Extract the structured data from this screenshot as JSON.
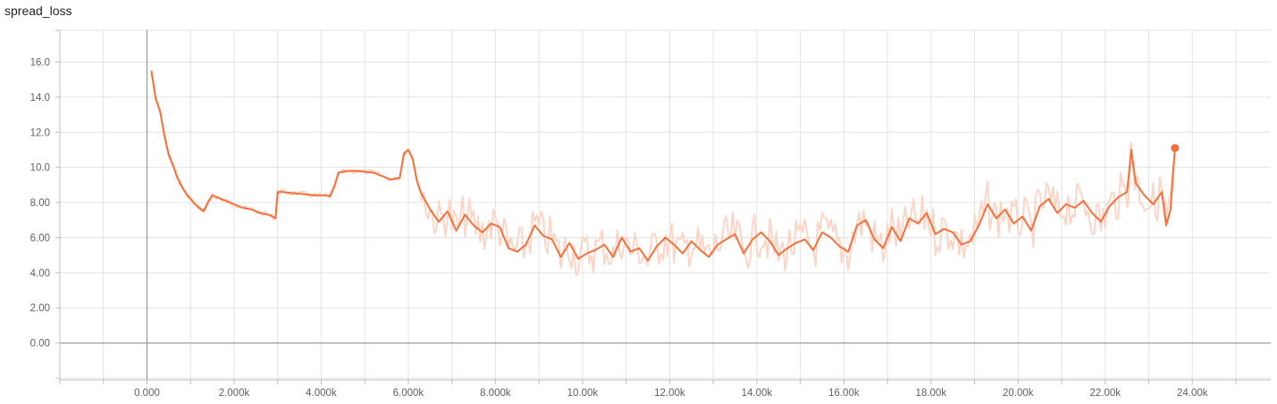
{
  "chart_data": {
    "type": "line",
    "title": "spread_loss",
    "xlabel": "",
    "ylabel": "",
    "xlim": [
      -2000,
      25800
    ],
    "ylim": [
      -2.1,
      17.8
    ],
    "grid": true,
    "x_ticks": [
      0,
      2000,
      4000,
      6000,
      8000,
      10000,
      12000,
      14000,
      16000,
      18000,
      20000,
      22000,
      24000
    ],
    "x_tick_labels": [
      "0.000",
      "2.000k",
      "4.000k",
      "6.000k",
      "8.000k",
      "10.00k",
      "12.00k",
      "14.00k",
      "16.00k",
      "18.00k",
      "20.00k",
      "22.00k",
      "24.00k"
    ],
    "y_ticks": [
      0,
      2,
      4,
      6,
      8,
      10,
      12,
      14,
      16
    ],
    "y_tick_labels": [
      "0.00",
      "2.00",
      "4.00",
      "6.00",
      "8.00",
      "10.0",
      "12.0",
      "14.0",
      "16.0"
    ],
    "series": [
      {
        "color": "#f7703b",
        "raw_color": "#fbd6c7",
        "x": [
          100,
          200,
          300,
          400,
          500,
          600,
          700,
          800,
          900,
          1000,
          1100,
          1200,
          1300,
          1400,
          1500,
          1600,
          1700,
          1800,
          1900,
          2000,
          2200,
          2400,
          2600,
          2800,
          2950,
          3000,
          3100,
          3300,
          3500,
          3700,
          3900,
          4100,
          4200,
          4300,
          4400,
          4600,
          4800,
          5000,
          5200,
          5400,
          5600,
          5800,
          5900,
          6000,
          6100,
          6200,
          6300,
          6500,
          6700,
          6900,
          7100,
          7300,
          7500,
          7700,
          7900,
          8100,
          8300,
          8500,
          8700,
          8900,
          9100,
          9300,
          9500,
          9700,
          9900,
          10100,
          10300,
          10500,
          10700,
          10900,
          11100,
          11300,
          11500,
          11700,
          11900,
          12100,
          12300,
          12500,
          12700,
          12900,
          13100,
          13300,
          13500,
          13700,
          13900,
          14100,
          14300,
          14500,
          14700,
          14900,
          15100,
          15300,
          15500,
          15700,
          15900,
          16100,
          16300,
          16500,
          16700,
          16900,
          17100,
          17300,
          17500,
          17700,
          17900,
          18100,
          18300,
          18500,
          18700,
          18900,
          19100,
          19300,
          19500,
          19700,
          19900,
          20100,
          20300,
          20500,
          20700,
          20900,
          21100,
          21300,
          21500,
          21700,
          21900,
          22100,
          22300,
          22500,
          22600,
          22700,
          22900,
          23100,
          23300,
          23400,
          23500,
          23600
        ],
        "values": [
          15.5,
          13.9,
          13.2,
          11.8,
          10.7,
          10.1,
          9.4,
          8.9,
          8.5,
          8.2,
          7.9,
          7.7,
          7.5,
          8.0,
          8.4,
          8.3,
          8.2,
          8.1,
          8.0,
          7.9,
          7.7,
          7.6,
          7.4,
          7.3,
          7.1,
          8.6,
          8.6,
          8.55,
          8.5,
          8.45,
          8.4,
          8.4,
          8.35,
          8.9,
          9.7,
          9.8,
          9.8,
          9.75,
          9.7,
          9.5,
          9.3,
          9.4,
          10.8,
          11.0,
          10.5,
          9.2,
          8.5,
          7.6,
          6.9,
          7.5,
          6.4,
          7.3,
          6.7,
          6.3,
          6.8,
          6.6,
          5.4,
          5.2,
          5.6,
          6.7,
          6.1,
          5.9,
          4.9,
          5.7,
          4.8,
          5.1,
          5.3,
          5.6,
          4.9,
          6.0,
          5.2,
          5.4,
          4.7,
          5.5,
          6.0,
          5.6,
          5.1,
          5.8,
          5.3,
          4.9,
          5.6,
          5.9,
          6.2,
          5.1,
          5.9,
          6.3,
          5.8,
          5.0,
          5.4,
          5.7,
          5.9,
          5.3,
          6.3,
          6.0,
          5.5,
          5.2,
          6.7,
          7.0,
          5.9,
          5.4,
          6.6,
          5.8,
          7.1,
          6.8,
          7.4,
          6.2,
          6.5,
          6.3,
          5.6,
          5.8,
          6.7,
          7.9,
          7.1,
          7.6,
          6.8,
          7.2,
          6.4,
          7.8,
          8.2,
          7.4,
          7.9,
          7.7,
          8.1,
          7.4,
          6.9,
          7.8,
          8.3,
          8.6,
          11.0,
          9.1,
          8.4,
          7.9,
          8.6,
          6.7,
          7.6,
          11.1
        ]
      }
    ]
  }
}
